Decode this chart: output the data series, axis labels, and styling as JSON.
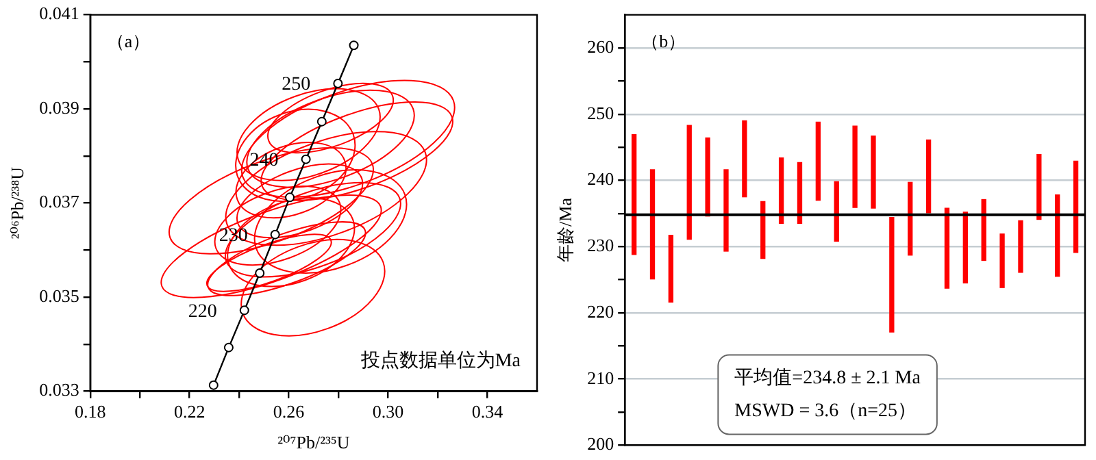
{
  "chart_data": [
    {
      "type": "line",
      "title": "（a）",
      "xlabel": "²⁰⁷Pb/²³⁵U",
      "ylabel": "²⁰⁶Pb/²³⁸U",
      "xlim": [
        0.18,
        0.36
      ],
      "xticks": [
        0.18,
        {
          "value": 0.2,
          "label": null
        },
        0.22,
        {
          "value": 0.24,
          "label": null
        },
        0.26,
        {
          "value": 0.28,
          "label": null
        },
        {
          "value": 0.3,
          "label": "0.30"
        },
        {
          "value": 0.32,
          "label": null
        },
        0.34
      ],
      "ylim": [
        0.033,
        0.041
      ],
      "yticks": [
        0.033,
        {
          "value": 0.034,
          "label": null
        },
        0.035,
        {
          "value": 0.036,
          "label": null
        },
        0.037,
        {
          "value": 0.038,
          "label": null
        },
        0.039,
        {
          "value": 0.04,
          "label": null
        },
        0.041
      ],
      "legend": false,
      "series": [
        {
          "color": "#000000",
          "marker": "circle",
          "line_style": "solid",
          "x": [
            0.2297,
            0.2358,
            0.2421,
            0.2483,
            0.2545,
            0.2604,
            0.2669,
            0.2733,
            0.2798,
            0.2862
          ],
          "values": [
            0.03313,
            0.03393,
            0.03472,
            0.03551,
            0.03633,
            0.03712,
            0.03793,
            0.03873,
            0.03954,
            0.04035
          ]
        }
      ],
      "annotations": [
        {
          "text": "250",
          "x": 0.2798,
          "y": 0.03954
        },
        {
          "text": "240",
          "x": 0.2669,
          "y": 0.03793
        },
        {
          "text": "230",
          "x": 0.2545,
          "y": 0.03633
        },
        {
          "text": "220",
          "x": 0.2421,
          "y": 0.03472
        },
        "投点数据单位为Ma"
      ]
    },
    {
      "type": "bar",
      "title": "（b）",
      "ylabel": "年龄/Ma",
      "categories": [
        null,
        null,
        null,
        null,
        null,
        null,
        null,
        null,
        null,
        null,
        null,
        null,
        null,
        null,
        null,
        null,
        null,
        null,
        null,
        null,
        null,
        null,
        null,
        null,
        null
      ],
      "base": [
        228.8,
        225.1,
        221.6,
        231.1,
        234.6,
        229.3,
        237.5,
        228.2,
        233.5,
        233.5,
        237.0,
        230.8,
        235.9,
        235.8,
        217.1,
        228.7,
        235.1,
        223.7,
        224.5,
        227.9,
        223.8,
        226.1,
        234.1,
        225.5,
        229.1
      ],
      "values": [
        18.1,
        16.5,
        10.1,
        17.2,
        11.8,
        12.3,
        11.5,
        8.6,
        9.9,
        9.2,
        11.8,
        9.0,
        12.3,
        10.9,
        17.3,
        11.0,
        11.0,
        12.1,
        10.7,
        9.2,
        8.1,
        7.8,
        9.8,
        12.3,
        13.8
      ],
      "color": "#ff0000",
      "ylim": [
        200,
        265
      ],
      "yticks": [
        200,
        {
          "value": 205,
          "label": null
        },
        210,
        {
          "value": 215,
          "label": null
        },
        220,
        {
          "value": 225,
          "label": null
        },
        230,
        {
          "value": 235,
          "label": null
        },
        240,
        {
          "value": 245,
          "label": null
        },
        250,
        {
          "value": 255,
          "label": null
        },
        260
      ],
      "grid": "y",
      "legend": false,
      "ref_lines": [
        {
          "axis": "y",
          "value": 234.8,
          "color": "#000000"
        }
      ],
      "annotations": [
        "平均值=234.8 ± 2.1 Ma",
        "MSWD = 3.6（n=25）"
      ]
    }
  ]
}
